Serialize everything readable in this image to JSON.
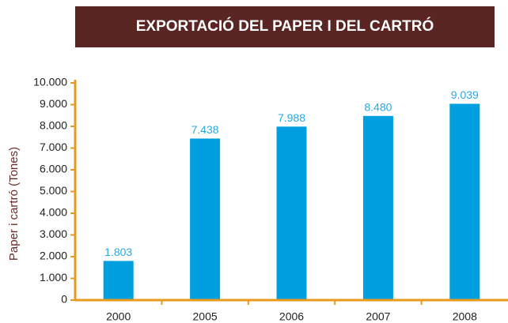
{
  "chart_data": {
    "type": "bar",
    "title": "EXPORTACIÓ DEL PAPER I DEL CARTRÓ",
    "y_label": "Paper i cartró (Tones)",
    "categories": [
      "2000",
      "2005",
      "2006",
      "2007",
      "2008"
    ],
    "values": [
      1803,
      7438,
      7988,
      8480,
      9039
    ],
    "value_labels": [
      "1.803",
      "7.438",
      "7.988",
      "8.480",
      "9.039"
    ],
    "color": "#009fe0",
    "ylim": [
      0,
      10000
    ],
    "yticks": [
      0,
      {
        "value": 1000,
        "label": "1.000"
      },
      {
        "value": 2000,
        "label": "2.000"
      },
      {
        "value": 3000,
        "label": "3.000"
      },
      {
        "value": 4000,
        "label": "4.000"
      },
      {
        "value": 5000,
        "label": "5.000"
      },
      {
        "value": 6000,
        "label": "6.000"
      },
      {
        "value": 7000,
        "label": "7.000"
      },
      {
        "value": 8000,
        "label": "8.000"
      },
      {
        "value": 9000,
        "label": "9.000"
      },
      {
        "value": 10000,
        "label": "10.000"
      }
    ],
    "grid": false
  }
}
